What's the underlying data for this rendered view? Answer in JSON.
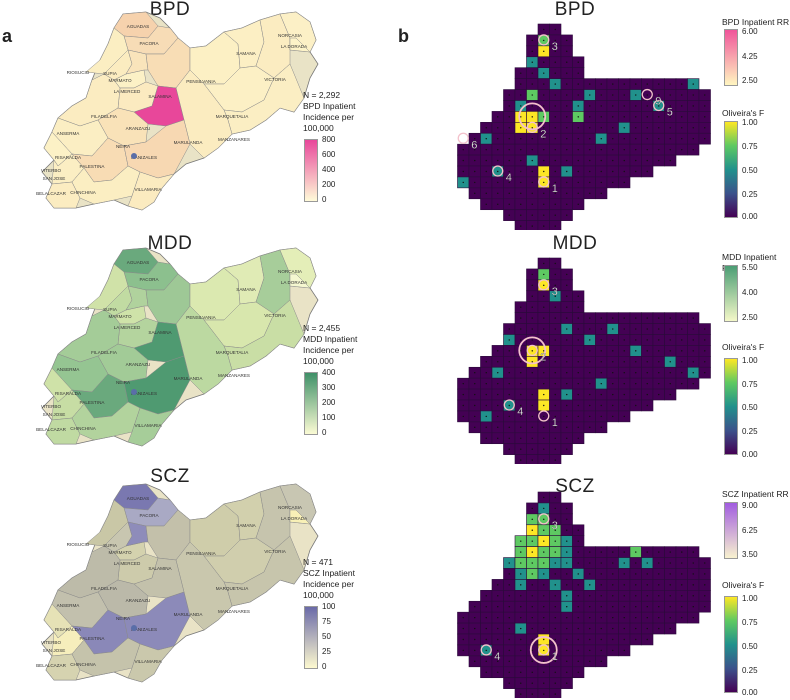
{
  "panels": {
    "a": "a",
    "b": "b"
  },
  "rows": [
    {
      "key": "BPD",
      "title": "BPD",
      "n_label": "N = 2,292",
      "incidence_label_lines": [
        "BPD Inpatient",
        "Incidence per",
        "100,000"
      ],
      "incidence_ticks": [
        "800",
        "600",
        "400",
        "200",
        "0"
      ],
      "incidence_colors": [
        "#fffbd8",
        "#e8479a"
      ],
      "rr_title": "BPD Inpatient RR",
      "rr_ticks": [
        "6.00",
        "4.25",
        "2.50"
      ],
      "rr_colors": [
        "#fff6c0",
        "#f0549a"
      ],
      "cluster_labels": [
        "1",
        "2",
        "3",
        "4",
        "5",
        "6",
        "9"
      ]
    },
    {
      "key": "MDD",
      "title": "MDD",
      "n_label": "N = 2,455",
      "incidence_label_lines": [
        "MDD Inpatient",
        "Incidence per",
        "100,000"
      ],
      "incidence_ticks": [
        "400",
        "300",
        "200",
        "100",
        "0"
      ],
      "incidence_colors": [
        "#fbfbd4",
        "#3f9068"
      ],
      "rr_title": "MDD Inpatient RR",
      "rr_ticks": [
        "5.50",
        "4.00",
        "2.50"
      ],
      "rr_colors": [
        "#f4f8c8",
        "#4b9d74"
      ],
      "cluster_labels": [
        "1",
        "2",
        "3",
        "4"
      ]
    },
    {
      "key": "SCZ",
      "title": "SCZ",
      "n_label": "N = 471",
      "incidence_label_lines": [
        "SCZ Inpatient",
        "Incidence per",
        "100,000"
      ],
      "incidence_ticks": [
        "100",
        "75",
        "50",
        "25",
        "0"
      ],
      "incidence_colors": [
        "#fdf9cf",
        "#6a6aa8"
      ],
      "rr_title": "SCZ Inpatient RR",
      "rr_ticks": [
        "9.00",
        "6.25",
        "3.50"
      ],
      "rr_colors": [
        "#f8f2cf",
        "#a15ce0"
      ],
      "cluster_labels": [
        "1",
        "3",
        "4"
      ]
    }
  ],
  "oliveira": {
    "title": "Oliveira's F",
    "ticks": [
      "1.00",
      "0.75",
      "0.50",
      "0.25",
      "0.00"
    ],
    "colors": [
      "#fde725",
      "#5ec962",
      "#21918c",
      "#3b528b",
      "#440154"
    ]
  },
  "municipalities": [
    {
      "name": "AGUADAS",
      "bpd": "#f6d2ad",
      "mdd": "#6aa97d",
      "scz": "#7a78b0"
    },
    {
      "name": "PACORA",
      "bpd": "#f7dcb6",
      "mdd": "#8cc08e",
      "scz": "#a9a9c4"
    },
    {
      "name": "RIOSUCIO",
      "bpd": "#fbeec2",
      "mdd": "#d0e2a8",
      "scz": "#c9c7a6"
    },
    {
      "name": "SUPIA",
      "bpd": "#fbecc0",
      "mdd": "#c1dba2",
      "scz": "#c8c6b0"
    },
    {
      "name": "MARMATO",
      "bpd": "#fcf1c6",
      "mdd": "#cfe3a9",
      "scz": "#d4d2ae"
    },
    {
      "name": "LA MERCED",
      "bpd": "#f9e4bb",
      "mdd": "#b0d29d",
      "scz": "#8e8cba"
    },
    {
      "name": "SALAMINA",
      "bpd": "#f8ddb5",
      "mdd": "#9ec896",
      "scz": "#c3c0aa"
    },
    {
      "name": "PENSILVANIA",
      "bpd": "#fcf0c4",
      "mdd": "#dbe9b0",
      "scz": "#cfcdaa"
    },
    {
      "name": "SAMANA",
      "bpd": "#fcefc4",
      "mdd": "#e0ebb5",
      "scz": "#d2d0ad"
    },
    {
      "name": "VICTORIA",
      "bpd": "#fbecc1",
      "mdd": "#a7cd9a",
      "scz": "#c6c4ad"
    },
    {
      "name": "LA DORADA",
      "bpd": "#fcf0c6",
      "mdd": "#e4eeb8",
      "scz": "#c8c6b2"
    },
    {
      "name": "NORCASIA",
      "bpd": "#fdf3c8",
      "mdd": "#f5f7d0",
      "scz": "#f8f0b6"
    },
    {
      "name": "MARQUETALIA",
      "bpd": "#fcf0c5",
      "mdd": "#d8e7ad",
      "scz": "#d0cead"
    },
    {
      "name": "MANZANARES",
      "bpd": "#fbeec3",
      "mdd": "#c9dea5",
      "scz": "#c7c5ac"
    },
    {
      "name": "MARULANDA",
      "bpd": "#fbecc0",
      "mdd": "#bcd9a1",
      "scz": "#c9c7ad"
    },
    {
      "name": "FILADELFIA",
      "bpd": "#fbeac0",
      "mdd": "#b4d49e",
      "scz": "#cdcbab"
    },
    {
      "name": "ARANZAZU",
      "bpd": "#e8479a",
      "mdd": "#4f9a71",
      "scz": "#c3c1ab"
    },
    {
      "name": "ANSERMA",
      "bpd": "#fbecc1",
      "mdd": "#a4cc98",
      "scz": "#bdbba9"
    },
    {
      "name": "NEIRA",
      "bpd": "#f9e2b8",
      "mdd": "#a2cb97",
      "scz": "#bbb9a9"
    },
    {
      "name": "RISARALDA",
      "bpd": "#fbeec3",
      "mdd": "#95c592",
      "scz": "#c2c0ad"
    },
    {
      "name": "VITERBO",
      "bpd": "#fcf1c6",
      "mdd": "#cfe2a8",
      "scz": "#e6e2b6"
    },
    {
      "name": "SAN JOSE",
      "bpd": "#fbeec3",
      "mdd": "#c7dda4",
      "scz": "#f6eebc"
    },
    {
      "name": "BELALCAZAR",
      "bpd": "#fbecc1",
      "mdd": "#c0daa2",
      "scz": "#d6d3b0"
    },
    {
      "name": "PALESTINA",
      "bpd": "#f8dcb4",
      "mdd": "#6aa97d",
      "scz": "#8a88b8"
    },
    {
      "name": "MANIZALES",
      "bpd": "#f7d8b2",
      "mdd": "#4f9a71",
      "scz": "#8c8ab9"
    },
    {
      "name": "CHINCHINA",
      "bpd": "#fbeec2",
      "mdd": "#b2d39d",
      "scz": "#c5c3ab"
    },
    {
      "name": "VILLAMARIA",
      "bpd": "#fbebc0",
      "mdd": "#a6cd99",
      "scz": "#cac8ac"
    }
  ]
}
